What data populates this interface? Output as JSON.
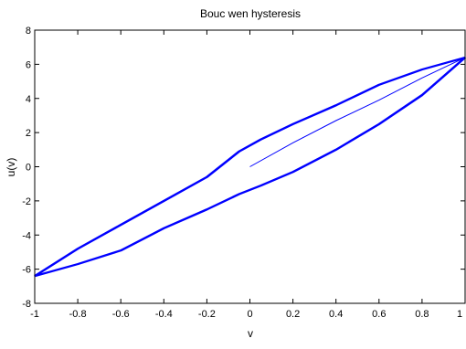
{
  "chart_data": {
    "type": "line",
    "title": "Bouc wen hysteresis",
    "xlabel": "v",
    "ylabel": "u(v)",
    "xlim": [
      -1,
      1
    ],
    "ylim": [
      -8,
      8
    ],
    "xticks": [
      "-1",
      "-0.8",
      "-0.6",
      "-0.4",
      "-0.2",
      "0",
      "0.2",
      "0.4",
      "0.6",
      "0.8",
      "1"
    ],
    "yticks": [
      "-8",
      "-6",
      "-4",
      "-2",
      "0",
      "2",
      "4",
      "6",
      "8"
    ],
    "grid": false,
    "line_color": "#0000ff",
    "series": [
      {
        "role": "initial-loading",
        "x": [
          0,
          0.2,
          0.4,
          0.6,
          0.8,
          1.0
        ],
        "y": [
          0,
          1.4,
          2.7,
          3.9,
          5.2,
          6.4
        ]
      },
      {
        "role": "unloading-branch",
        "x": [
          1.0,
          0.8,
          0.6,
          0.4,
          0.2,
          0.05,
          -0.05,
          -0.2,
          -0.4,
          -0.6,
          -0.8,
          -1.0
        ],
        "y": [
          6.4,
          4.2,
          2.5,
          1.0,
          -0.3,
          -1.1,
          -1.6,
          -2.5,
          -3.6,
          -4.9,
          -5.7,
          -6.4
        ]
      },
      {
        "role": "loading-branch",
        "x": [
          -1.0,
          -0.8,
          -0.6,
          -0.4,
          -0.2,
          -0.05,
          0.05,
          0.2,
          0.4,
          0.6,
          0.8,
          1.0
        ],
        "y": [
          -6.4,
          -4.8,
          -3.4,
          -2.0,
          -0.6,
          0.9,
          1.6,
          2.5,
          3.6,
          4.8,
          5.7,
          6.4
        ]
      }
    ]
  }
}
